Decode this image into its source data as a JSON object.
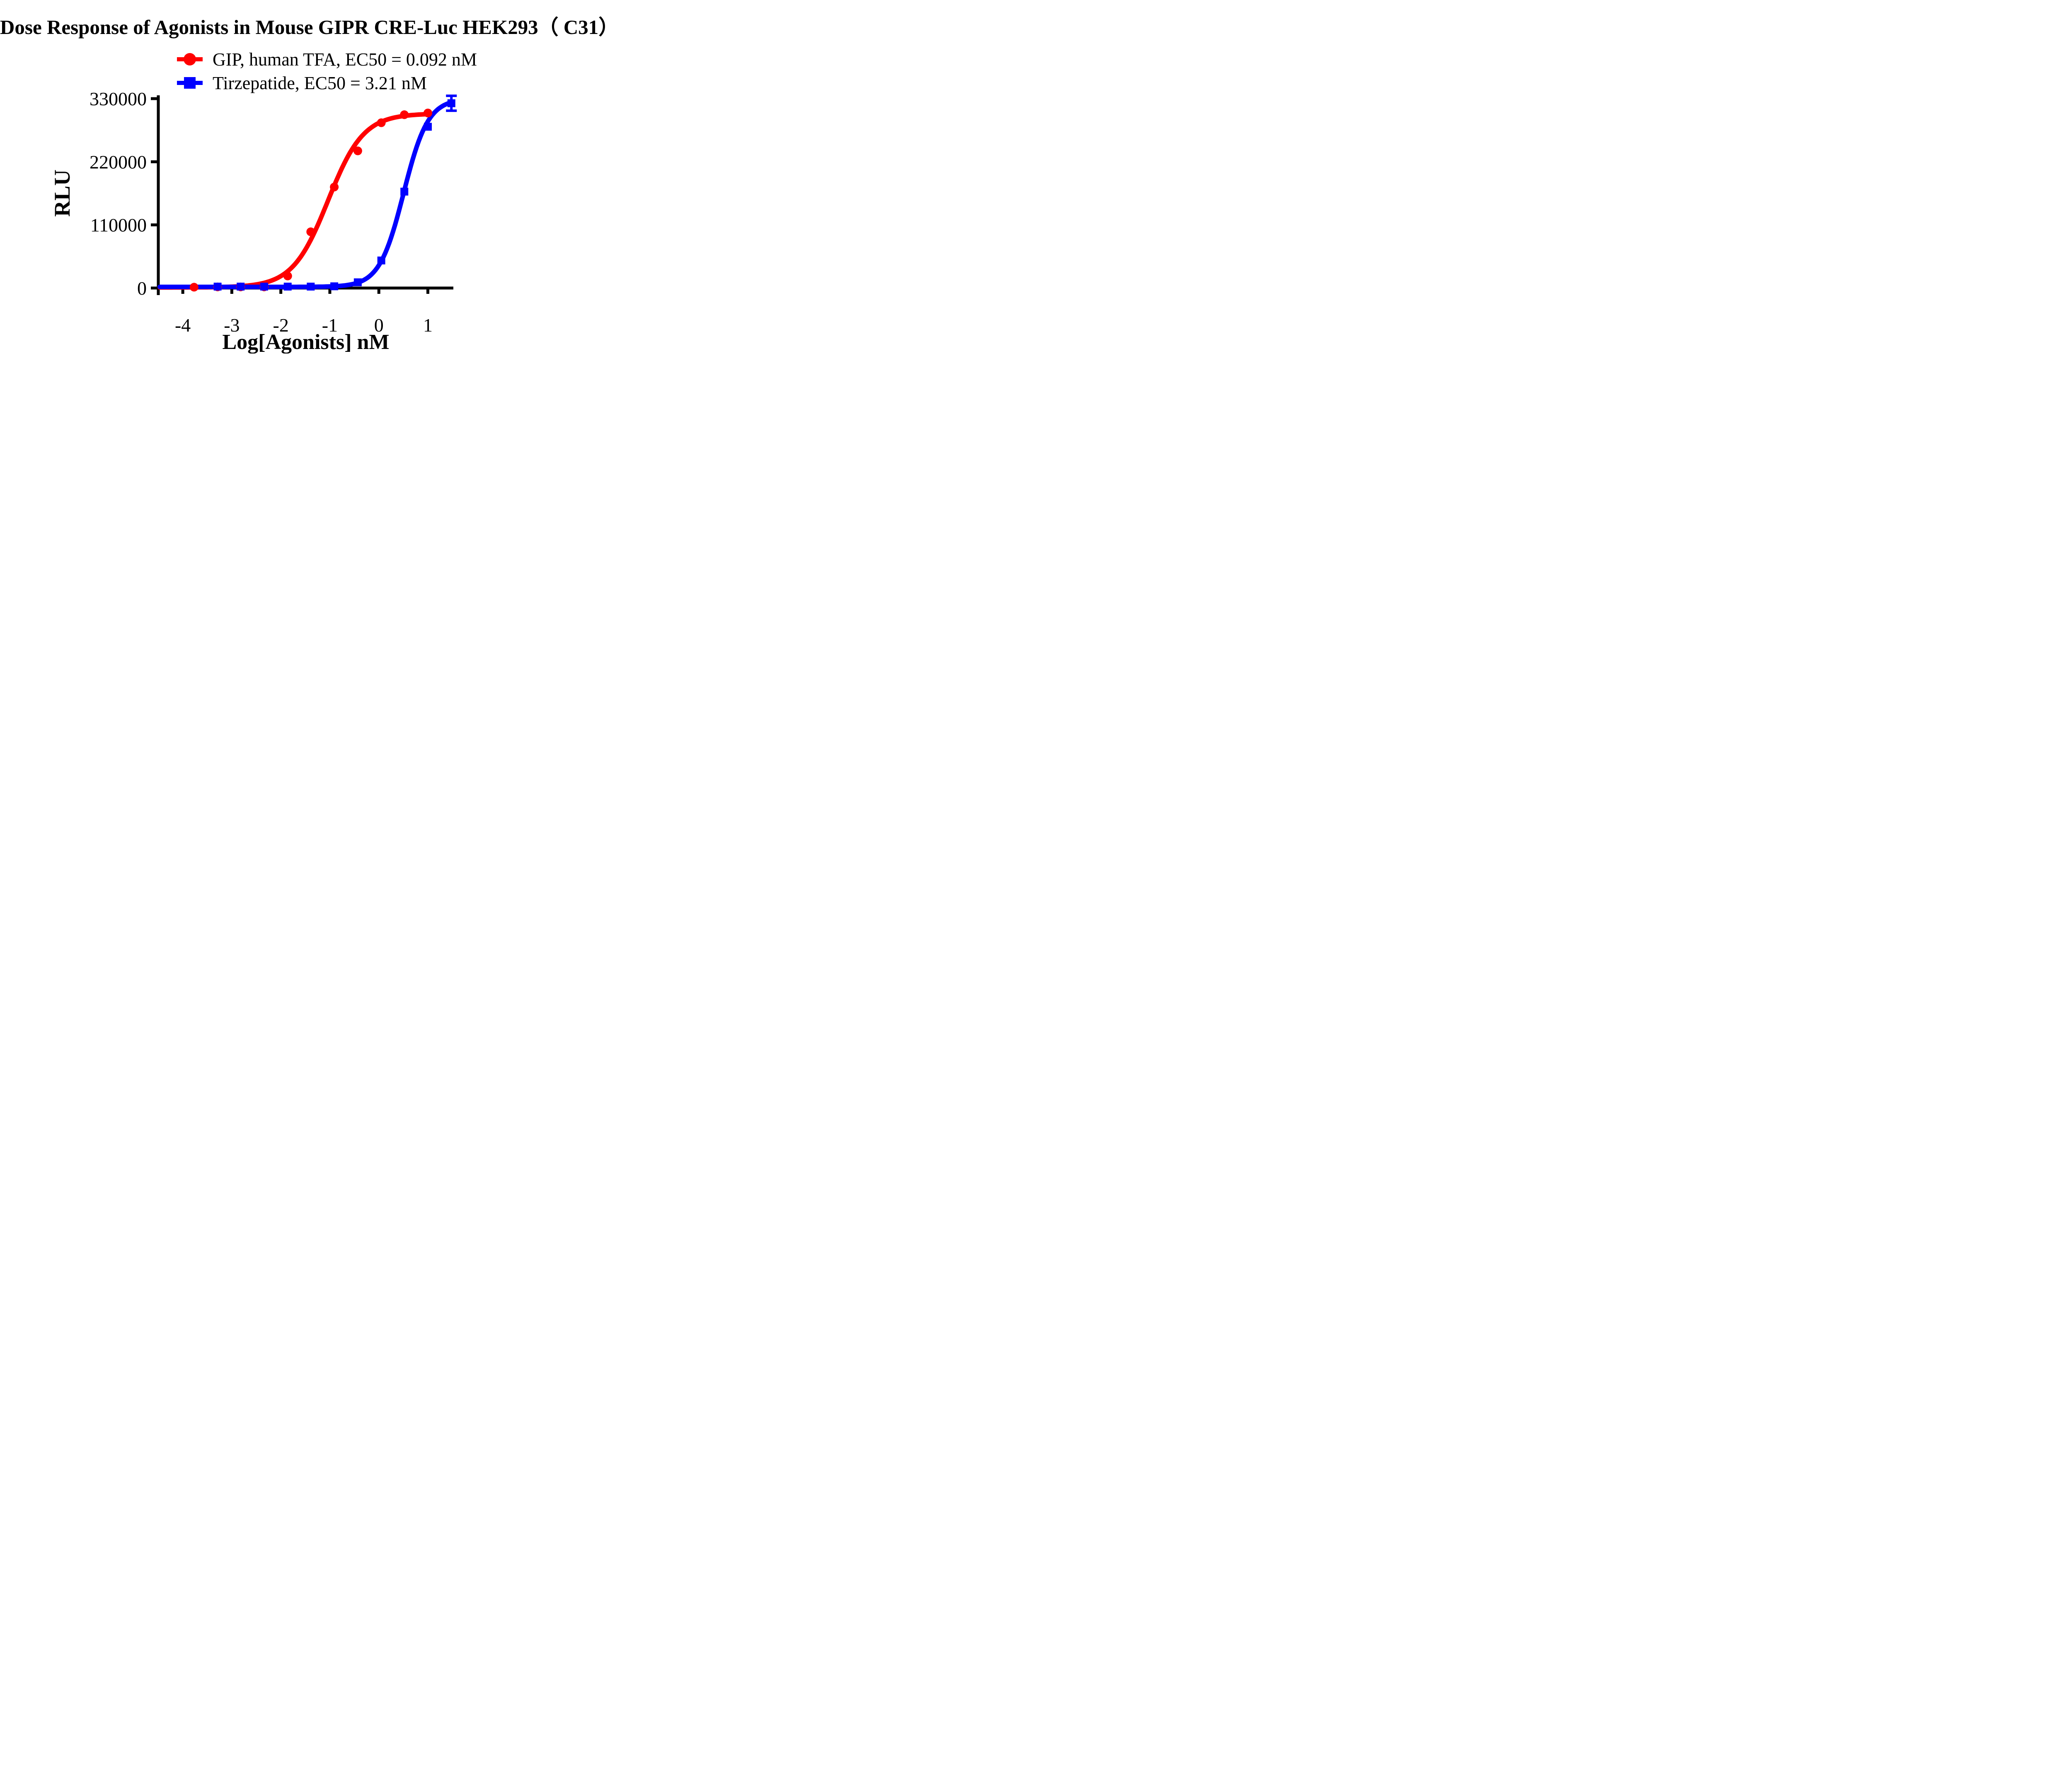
{
  "title": "Dose Response of Agonists in Mouse GIPR CRE-Luc HEK293（ C31）",
  "chart_data": {
    "type": "scatter",
    "title": "Dose Response of Agonists in Mouse GIPR CRE-Luc HEK293（ C31）",
    "xlabel": "Log[Agonists] nM",
    "ylabel": "RLU",
    "x_ticks": [
      -4,
      -3,
      -2,
      -1,
      0,
      1
    ],
    "y_ticks": [
      0,
      110000,
      220000,
      330000
    ],
    "xlim": [
      -4.5,
      1.52
    ],
    "ylim": [
      0,
      330000
    ],
    "grid": false,
    "legend_position": "top-center",
    "axis_color": "#000000",
    "series": [
      {
        "name": "GIP, human TFA, EC50 = 0.092 nM",
        "ec50_label": "EC50 = 0.092 nM",
        "ec50_nM": 0.092,
        "color": "#ff0000",
        "marker": "circle",
        "x": [
          -3.77,
          -3.29,
          -2.82,
          -2.34,
          -1.86,
          -1.39,
          -0.91,
          -0.43,
          0.05,
          0.52,
          1.0
        ],
        "y": [
          1500,
          2000,
          2000,
          2000,
          21000,
          98000,
          176000,
          239000,
          288000,
          302000,
          305000
        ],
        "fit": {
          "bottom": 1000,
          "top": 304000,
          "logEC50": -1.036,
          "hill": 1.2
        },
        "error_bars": []
      },
      {
        "name": "Tirzepatide, EC50 = 3.21 nM",
        "ec50_label": "EC50 = 3.21 nM",
        "ec50_nM": 3.21,
        "color": "#0000ff",
        "marker": "square",
        "x": [
          -3.29,
          -2.82,
          -2.34,
          -1.86,
          -1.39,
          -0.91,
          -0.43,
          0.05,
          0.52,
          1.0,
          1.48
        ],
        "y": [
          2500,
          2500,
          2500,
          2500,
          2500,
          3000,
          10000,
          48000,
          168000,
          281000,
          322000
        ],
        "fit": {
          "bottom": 2000,
          "top": 330000,
          "logEC50": 0.507,
          "hill": 1.75
        },
        "error_bars": [
          {
            "x": 1.48,
            "y": 322000,
            "plus": 13000,
            "minus": 13000
          }
        ]
      }
    ]
  }
}
